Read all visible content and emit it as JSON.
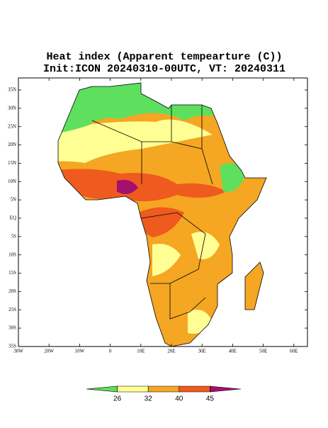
{
  "title": "Heat index (Apparent tempearture (C))",
  "subtitle": "Init:ICON 20240310-00UTC, VT: 20240311",
  "map": {
    "lat_ticks": [
      "35N",
      "30N",
      "25N",
      "20N",
      "15N",
      "10N",
      "5N",
      "EQ",
      "5S",
      "10S",
      "15S",
      "20S",
      "25S",
      "30S",
      "35S"
    ],
    "lon_ticks": [
      "30W",
      "20W",
      "10W",
      "0",
      "10E",
      "20E",
      "30E",
      "40E",
      "50E",
      "60E"
    ]
  },
  "colorbar": {
    "colors": [
      "#5ee05e",
      "#ffff94",
      "#f5a623",
      "#ef5a1e",
      "#a3106e"
    ],
    "labels": [
      "26",
      "32",
      "40",
      "45"
    ]
  }
}
